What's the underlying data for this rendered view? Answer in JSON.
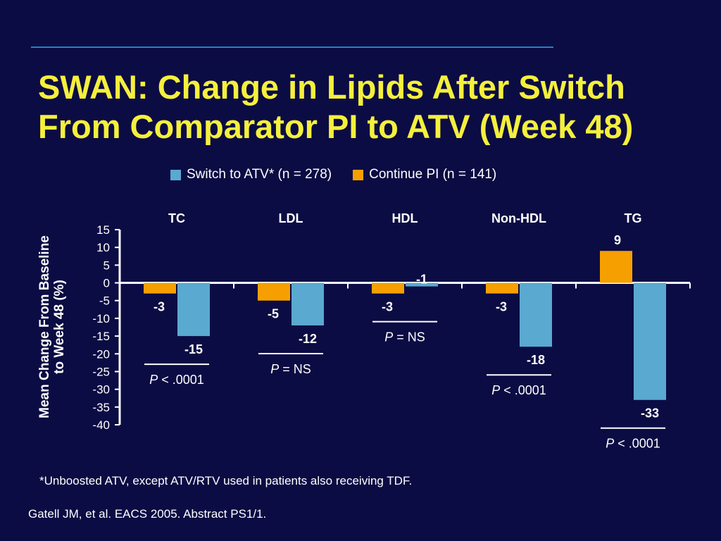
{
  "slide": {
    "title_line1": "SWAN: Change in Lipids After Switch",
    "title_line2": "From Comparator PI to ATV (Week 48)",
    "footnote": "*Unboosted ATV, except ATV/RTV used in patients also receiving TDF.",
    "citation": "Gatell JM, et al. EACS 2005. Abstract PS1/1."
  },
  "colors": {
    "background": "#0c0c44",
    "title": "#f4f03c",
    "switch_series": "#5aa9d0",
    "continue_series": "#f5a000",
    "text": "#ffffff",
    "top_rule": "#2a7fc0"
  },
  "chart_data": {
    "type": "bar",
    "categories": [
      "TC",
      "LDL",
      "HDL",
      "Non-HDL",
      "TG"
    ],
    "series": [
      {
        "name": "Continue PI (n = 141)",
        "values": [
          -3,
          -5,
          -3,
          -3,
          9
        ]
      },
      {
        "name": "Switch to ATV* (n = 278)",
        "values": [
          -15,
          -12,
          -1,
          -18,
          -33
        ]
      }
    ],
    "legend": {
      "position": "top",
      "items": [
        "Switch to ATV* (n = 278)",
        "Continue PI (n = 141)"
      ]
    },
    "ylabel_line1": "Mean Change From Baseline",
    "ylabel_line2": "to Week 48 (%)",
    "xlabel": "",
    "ylim": [
      -40,
      15
    ],
    "yticks": [
      15,
      10,
      5,
      0,
      -5,
      -10,
      -15,
      -20,
      -25,
      -30,
      -35,
      -40
    ],
    "grid": false,
    "pvalues": [
      {
        "category": "TC",
        "prefix": "P",
        "text": " < .0001"
      },
      {
        "category": "LDL",
        "prefix": "P",
        "text": " = NS"
      },
      {
        "category": "HDL",
        "prefix": "P",
        "text": " = NS"
      },
      {
        "category": "Non-HDL",
        "prefix": "P",
        "text": " < .0001"
      },
      {
        "category": "TG",
        "prefix": "P",
        "text": " < .0001"
      }
    ]
  }
}
